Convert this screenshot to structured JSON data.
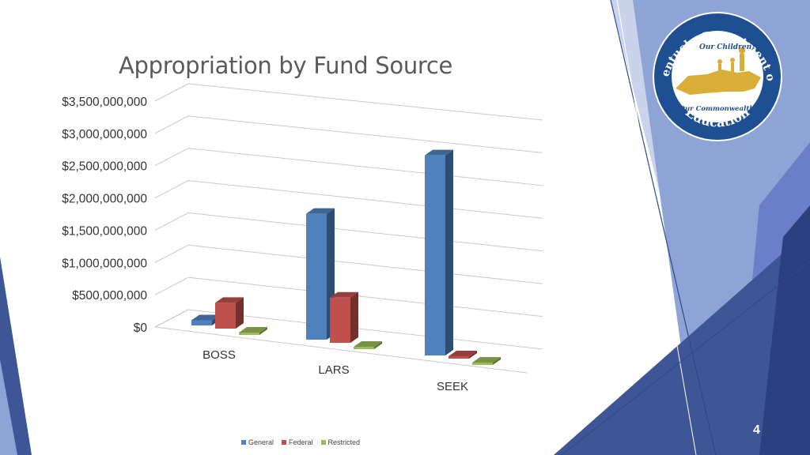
{
  "slide": {
    "title": "Appropriation by Fund Source",
    "page_number": "4"
  },
  "logo": {
    "arc_top": "Kentucky Department of",
    "arc_bottom": "Education",
    "inner_top": "Our Children,",
    "inner_bottom": "Our Commonwealth"
  },
  "chart_data": {
    "type": "bar",
    "title": "Appropriation by Fund Source",
    "categories": [
      "BOSS",
      "LARS",
      "SEEK"
    ],
    "series": [
      {
        "name": "General",
        "color": "#4f81bd",
        "values": [
          80000000,
          1950000000,
          3100000000
        ]
      },
      {
        "name": "Federal",
        "color": "#c0504d",
        "values": [
          400000000,
          700000000,
          15000000
        ]
      },
      {
        "name": "Restricted",
        "color": "#9bbb59",
        "values": [
          5000000,
          8000000,
          8000000
        ]
      }
    ],
    "y_tick_labels": [
      "$0",
      "$500,000,000",
      "$1,000,000,000",
      "$1,500,000,000",
      "$2,000,000,000",
      "$2,500,000,000",
      "$3,000,000,000",
      "$3,500,000,000"
    ],
    "ylim": [
      0,
      3500000000
    ],
    "grid": true,
    "legend_placement": "bottom"
  },
  "colors": {
    "deco_dark": "#2e4a8a",
    "deco_mid": "#6e86c4",
    "deco_light": "#b9c6e6",
    "logo_blue": "#1f4f93",
    "logo_gold": "#d8ad38"
  }
}
